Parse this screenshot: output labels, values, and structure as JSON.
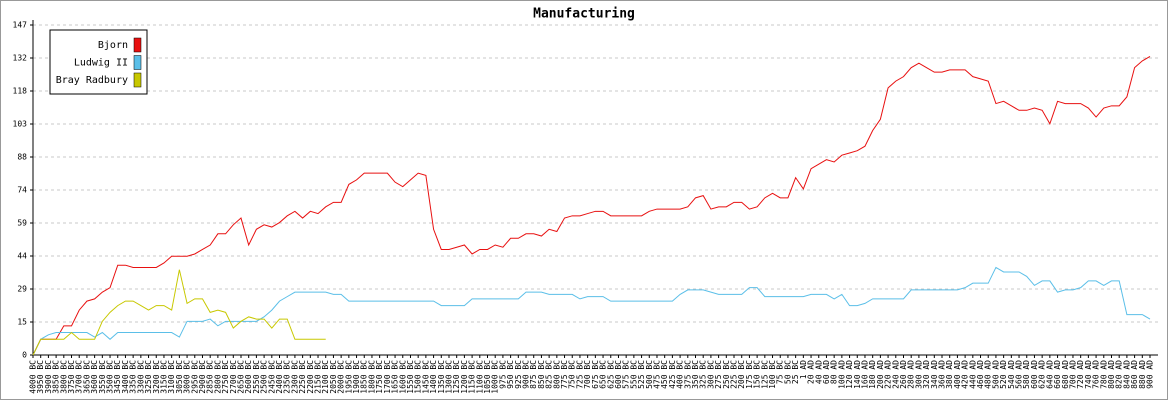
{
  "chart_data": {
    "type": "line",
    "title": "Manufacturing",
    "categories": [
      "4000 BC",
      "3950 BC",
      "3900 BC",
      "3850 BC",
      "3800 BC",
      "3750 BC",
      "3700 BC",
      "3650 BC",
      "3600 BC",
      "3550 BC",
      "3500 BC",
      "3450 BC",
      "3400 BC",
      "3350 BC",
      "3300 BC",
      "3250 BC",
      "3200 BC",
      "3150 BC",
      "3100 BC",
      "3050 BC",
      "3000 BC",
      "2950 BC",
      "2900 BC",
      "2850 BC",
      "2800 BC",
      "2750 BC",
      "2700 BC",
      "2650 BC",
      "2600 BC",
      "2550 BC",
      "2500 BC",
      "2450 BC",
      "2400 BC",
      "2350 BC",
      "2300 BC",
      "2250 BC",
      "2200 BC",
      "2150 BC",
      "2100 BC",
      "2050 BC",
      "2000 BC",
      "1950 BC",
      "1900 BC",
      "1850 BC",
      "1800 BC",
      "1750 BC",
      "1700 BC",
      "1650 BC",
      "1600 BC",
      "1550 BC",
      "1500 BC",
      "1450 BC",
      "1400 BC",
      "1350 BC",
      "1300 BC",
      "1250 BC",
      "1200 BC",
      "1150 BC",
      "1100 BC",
      "1050 BC",
      "1000 BC",
      "975 BC",
      "950 BC",
      "925 BC",
      "900 BC",
      "875 BC",
      "850 BC",
      "825 BC",
      "800 BC",
      "775 BC",
      "750 BC",
      "725 BC",
      "700 BC",
      "675 BC",
      "650 BC",
      "625 BC",
      "600 BC",
      "575 BC",
      "550 BC",
      "525 BC",
      "500 BC",
      "475 BC",
      "450 BC",
      "425 BC",
      "400 BC",
      "375 BC",
      "350 BC",
      "325 BC",
      "300 BC",
      "275 BC",
      "250 BC",
      "225 BC",
      "200 BC",
      "175 BC",
      "150 BC",
      "125 BC",
      "100 BC",
      "75 BC",
      "50 BC",
      "25 BC",
      "1 AD",
      "20 AD",
      "40 AD",
      "60 AD",
      "80 AD",
      "100 AD",
      "120 AD",
      "140 AD",
      "160 AD",
      "180 AD",
      "200 AD",
      "220 AD",
      "240 AD",
      "260 AD",
      "280 AD",
      "300 AD",
      "320 AD",
      "340 AD",
      "360 AD",
      "380 AD",
      "400 AD",
      "420 AD",
      "440 AD",
      "460 AD",
      "480 AD",
      "500 AD",
      "520 AD",
      "540 AD",
      "560 AD",
      "580 AD",
      "600 AD",
      "620 AD",
      "640 AD",
      "660 AD",
      "680 AD",
      "700 AD",
      "720 AD",
      "740 AD",
      "760 AD",
      "780 AD",
      "800 AD",
      "820 AD",
      "840 AD",
      "860 AD",
      "880 AD",
      "900 AD"
    ],
    "series": [
      {
        "name": "Bjorn",
        "color": "#e81010",
        "values": [
          0,
          7,
          7,
          7,
          13,
          13,
          20,
          24,
          25,
          28,
          30,
          40,
          40,
          39,
          39,
          39,
          39,
          41,
          44,
          44,
          44,
          45,
          47,
          49,
          54,
          54,
          58,
          61,
          49,
          56,
          58,
          57,
          59,
          62,
          64,
          61,
          64,
          63,
          66,
          68,
          68,
          76,
          78,
          81,
          81,
          81,
          81,
          77,
          75,
          78,
          81,
          80,
          56,
          47,
          47,
          48,
          49,
          45,
          47,
          47,
          49,
          48,
          52,
          52,
          54,
          54,
          53,
          56,
          55,
          61,
          62,
          62,
          63,
          64,
          64,
          62,
          62,
          62,
          62,
          62,
          64,
          65,
          65,
          65,
          65,
          66,
          70,
          71,
          65,
          66,
          66,
          68,
          68,
          65,
          66,
          70,
          72,
          70,
          70,
          79,
          74,
          83,
          85,
          87,
          86,
          89,
          90,
          91,
          93,
          100,
          105,
          119,
          122,
          124,
          128,
          130,
          128,
          126,
          126,
          127,
          127,
          127,
          124,
          123,
          122,
          112,
          113,
          111,
          109,
          109,
          110,
          109,
          103,
          113,
          112,
          112,
          112,
          110,
          106,
          110,
          111,
          111,
          115,
          128,
          131,
          133
        ]
      },
      {
        "name": "Ludwig II",
        "color": "#5bbfe8",
        "values": [
          0,
          7,
          9,
          10,
          10,
          10,
          10,
          10,
          8,
          10,
          7,
          10,
          10,
          10,
          10,
          10,
          10,
          10,
          10,
          8,
          15,
          15,
          15,
          16,
          13,
          15,
          15,
          15,
          15,
          15,
          17,
          20,
          24,
          26,
          28,
          28,
          28,
          28,
          28,
          27,
          27,
          24,
          24,
          24,
          24,
          24,
          24,
          24,
          24,
          24,
          24,
          24,
          24,
          22,
          22,
          22,
          22,
          25,
          25,
          25,
          25,
          25,
          25,
          25,
          28,
          28,
          28,
          27,
          27,
          27,
          27,
          25,
          26,
          26,
          26,
          24,
          24,
          24,
          24,
          24,
          24,
          24,
          24,
          24,
          27,
          29,
          29,
          29,
          28,
          27,
          27,
          27,
          27,
          30,
          30,
          26,
          26,
          26,
          26,
          26,
          26,
          27,
          27,
          27,
          25,
          27,
          22,
          22,
          23,
          25,
          25,
          25,
          25,
          25,
          29,
          29,
          29,
          29,
          29,
          29,
          29,
          30,
          32,
          32,
          32,
          39,
          37,
          37,
          37,
          35,
          31,
          33,
          33,
          28,
          29,
          29,
          30,
          33,
          33,
          31,
          33,
          33,
          18,
          18,
          18,
          16
        ]
      },
      {
        "name": "Bray Radbury",
        "color": "#c8c800",
        "values": [
          0,
          7,
          7,
          7,
          7,
          10,
          7,
          7,
          7,
          15,
          19,
          22,
          24,
          24,
          22,
          20,
          22,
          22,
          20,
          38,
          23,
          25,
          25,
          19,
          20,
          19,
          12,
          15,
          17,
          16,
          16,
          12,
          16,
          16,
          7,
          7,
          7,
          7,
          7,
          null,
          null,
          null,
          null,
          null,
          null,
          null,
          null,
          null,
          null,
          null,
          null,
          null,
          null,
          null,
          null,
          null,
          null,
          null,
          null,
          null,
          null,
          null,
          null,
          null,
          null,
          null,
          null,
          null,
          null,
          null,
          null,
          null,
          null,
          null,
          null,
          null,
          null,
          null,
          null,
          null,
          null,
          null,
          null,
          null,
          null,
          null,
          null,
          null,
          null,
          null,
          null,
          null,
          null,
          null,
          null,
          null,
          null,
          null,
          null,
          null,
          null,
          null,
          null,
          null,
          null,
          null,
          null,
          null,
          null,
          null,
          null,
          null,
          null,
          null,
          null,
          null,
          null,
          null,
          null,
          null,
          null,
          null,
          null,
          null,
          null,
          null,
          null,
          null,
          null,
          null,
          null,
          null,
          null,
          null,
          null,
          null,
          null,
          null,
          null,
          null,
          null,
          null,
          null,
          null,
          null,
          null
        ]
      }
    ],
    "ylim": [
      0,
      147
    ],
    "yticks": [
      0,
      {
        "value": 14.7,
        "label": "15"
      },
      {
        "value": 29.4,
        "label": "29"
      },
      {
        "value": 44.1,
        "label": "44"
      },
      {
        "value": 58.8,
        "label": "59"
      },
      {
        "value": 73.5,
        "label": "74"
      },
      {
        "value": 88.2,
        "label": "88"
      },
      {
        "value": 102.9,
        "label": "103"
      },
      {
        "value": 117.6,
        "label": "118"
      },
      {
        "value": 132.3,
        "label": "132"
      },
      147
    ],
    "grid": true,
    "legend": "top-left"
  }
}
